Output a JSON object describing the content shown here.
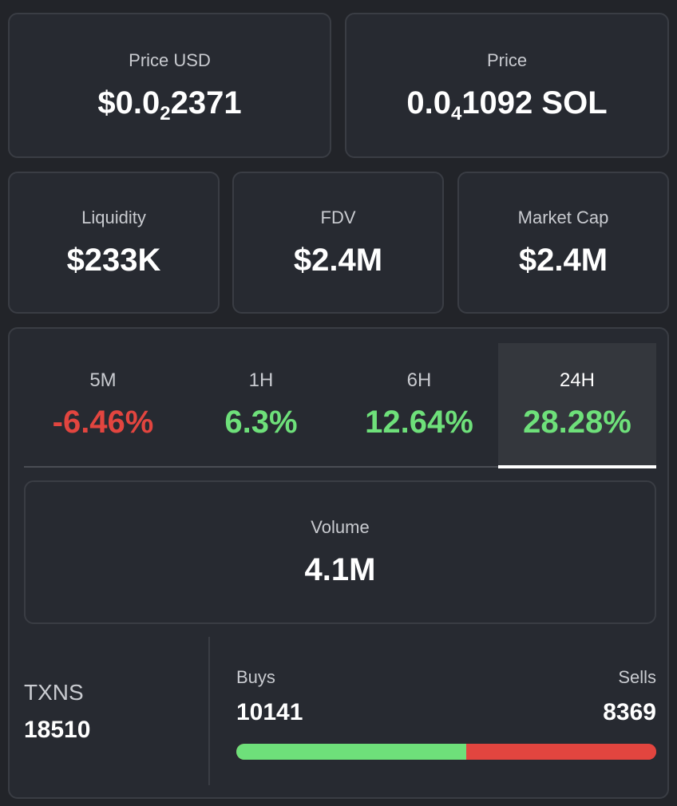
{
  "stats": {
    "price_usd": {
      "label": "Price USD",
      "prefix": "$0.0",
      "sub": "2",
      "suffix": "2371"
    },
    "price_sol": {
      "label": "Price",
      "prefix": "0.0",
      "sub": "4",
      "suffix": "1092 SOL"
    },
    "liquidity": {
      "label": "Liquidity",
      "value": "$233K"
    },
    "fdv": {
      "label": "FDV",
      "value": "$2.4M"
    },
    "market_cap": {
      "label": "Market Cap",
      "value": "$2.4M"
    }
  },
  "tabs": [
    {
      "label": "5M",
      "value": "-6.46%",
      "trend": "negative"
    },
    {
      "label": "1H",
      "value": "6.3%",
      "trend": "positive"
    },
    {
      "label": "6H",
      "value": "12.64%",
      "trend": "positive"
    },
    {
      "label": "24H",
      "value": "28.28%",
      "trend": "positive",
      "active": true
    }
  ],
  "volume": {
    "label": "Volume",
    "value": "4.1M"
  },
  "txns": {
    "label": "TXNS",
    "value": "18510"
  },
  "buys": {
    "label": "Buys",
    "value": "10141"
  },
  "sells": {
    "label": "Sells",
    "value": "8369"
  },
  "buy_fraction": 0.548,
  "colors": {
    "positive": "#6ee07a",
    "negative": "#e2453f",
    "background": "#222429",
    "card": "#272a31"
  }
}
